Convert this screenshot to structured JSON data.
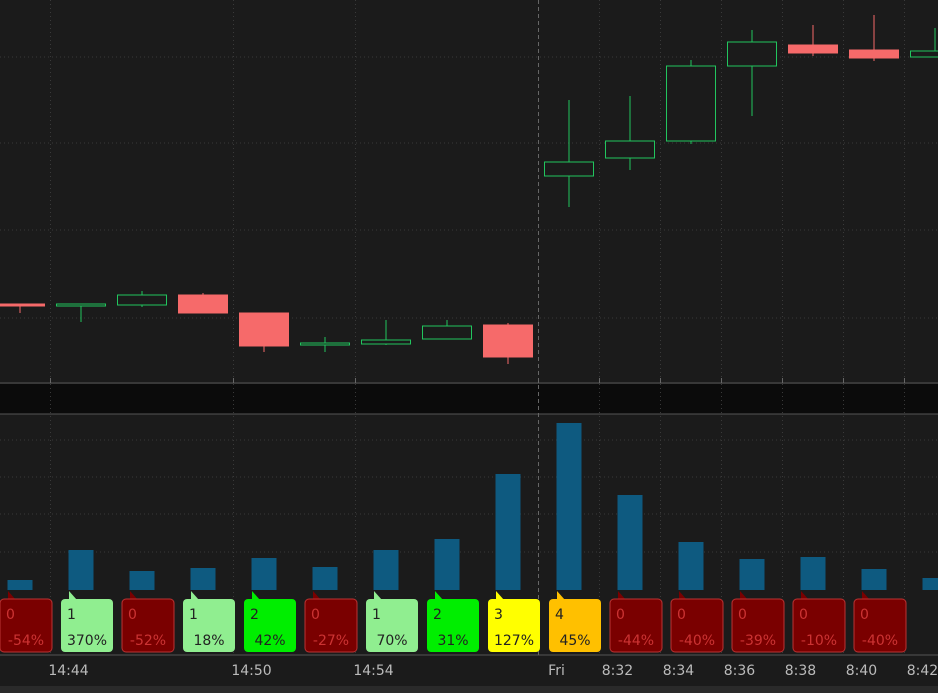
{
  "chart_data": [
    {
      "type": "candlestick",
      "ylim": [
        0,
        380
      ],
      "up_color": "#22c55e",
      "down_color": "#f66a6a",
      "open": [
        76,
        74,
        75,
        85,
        67,
        35,
        36,
        41,
        55,
        204,
        222,
        239,
        314,
        335,
        330,
        323
      ],
      "high": [
        76,
        76,
        89,
        87,
        67,
        43,
        60,
        60,
        57,
        280,
        284,
        320,
        350,
        355,
        365,
        352
      ],
      "low": [
        67,
        58,
        73,
        67,
        28,
        28,
        35,
        41,
        16,
        173,
        210,
        236,
        264,
        324,
        319,
        323
      ],
      "close": [
        74,
        76,
        85,
        67,
        34,
        37,
        40,
        54,
        23,
        218,
        239,
        314,
        338,
        327,
        322,
        329
      ],
      "xticks": [
        {
          "value": 0.5,
          "label": "14:44"
        },
        {
          "value": 3.5,
          "label": "14:50"
        },
        {
          "value": 5.5,
          "label": "14:54"
        },
        {
          "value": 8.5,
          "label": "Fri"
        },
        {
          "value": 9.5,
          "label": "8:32"
        },
        {
          "value": 10.5,
          "label": "8:34"
        },
        {
          "value": 11.5,
          "label": "8:36"
        },
        {
          "value": 12.5,
          "label": "8:38"
        },
        {
          "value": 13.5,
          "label": "8:40"
        },
        {
          "value": 14.5,
          "label": "8:42"
        }
      ]
    },
    {
      "type": "bar",
      "ylim": [
        0,
        176
      ],
      "color": "#0e5a80",
      "values": [
        10,
        40,
        19,
        22,
        32,
        23,
        40,
        51,
        116,
        167,
        95,
        48,
        31,
        33,
        21,
        12
      ],
      "annotations": [
        {
          "count": "0",
          "change": "-54%",
          "color": "#7a0000"
        },
        {
          "count": "1",
          "change": "370%",
          "color": "#90ee90"
        },
        {
          "count": "0",
          "change": "-52%",
          "color": "#7a0000"
        },
        {
          "count": "1",
          "change": "18%",
          "color": "#90ee90"
        },
        {
          "count": "2",
          "change": "42%",
          "color": "#00ee00"
        },
        {
          "count": "0",
          "change": "-27%",
          "color": "#7a0000"
        },
        {
          "count": "1",
          "change": "70%",
          "color": "#90ee90"
        },
        {
          "count": "2",
          "change": "31%",
          "color": "#00ee00"
        },
        {
          "count": "3",
          "change": "127%",
          "color": "#ffff00"
        },
        {
          "count": "4",
          "change": "45%",
          "color": "#ffc000"
        },
        {
          "count": "0",
          "change": "-44%",
          "color": "#7a0000"
        },
        {
          "count": "0",
          "change": "-40%",
          "color": "#7a0000"
        },
        {
          "count": "0",
          "change": "-39%",
          "color": "#7a0000"
        },
        {
          "count": "0",
          "change": "-10%",
          "color": "#7a0000"
        },
        {
          "count": "0",
          "change": "-40%",
          "color": "#7a0000"
        }
      ]
    }
  ]
}
